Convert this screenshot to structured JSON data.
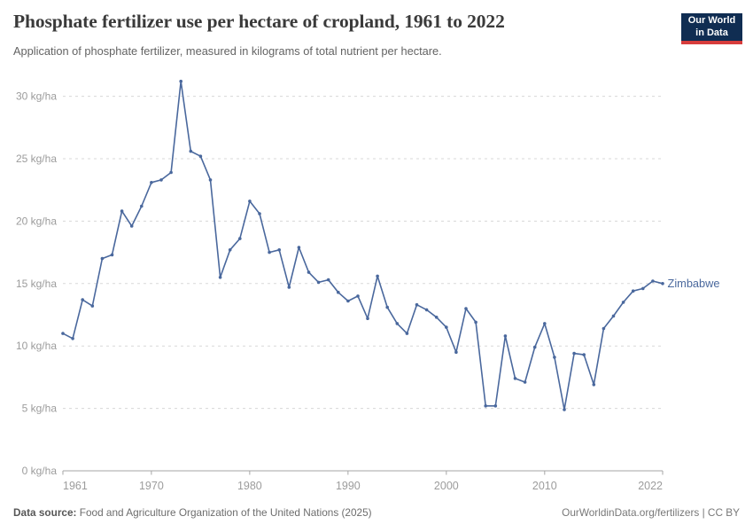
{
  "header": {
    "title": "Phosphate fertilizer use per hectare of cropland, 1961 to 2022",
    "subtitle": "Application of phosphate fertilizer, measured in kilograms of total nutrient per hectare."
  },
  "logo": {
    "line1": "Our World",
    "line2": "in Data",
    "bg_color": "#102d52",
    "accent_color": "#d73c3c"
  },
  "chart_data": {
    "type": "line",
    "title": "Phosphate fertilizer use per hectare of cropland, 1961 to 2022",
    "unit": "kg/ha",
    "x": [
      1961,
      1962,
      1963,
      1964,
      1965,
      1966,
      1967,
      1968,
      1969,
      1970,
      1971,
      1972,
      1973,
      1974,
      1975,
      1976,
      1977,
      1978,
      1979,
      1980,
      1981,
      1982,
      1983,
      1984,
      1985,
      1986,
      1987,
      1988,
      1989,
      1990,
      1991,
      1992,
      1993,
      1994,
      1995,
      1996,
      1997,
      1998,
      1999,
      2000,
      2001,
      2002,
      2003,
      2004,
      2005,
      2006,
      2007,
      2008,
      2009,
      2010,
      2011,
      2012,
      2013,
      2014,
      2015,
      2016,
      2017,
      2018,
      2019,
      2020,
      2021,
      2022
    ],
    "series": [
      {
        "name": "Zimbabwe",
        "color": "#4a689d",
        "values": [
          11,
          10.6,
          13.7,
          13.2,
          17,
          17.3,
          20.8,
          19.6,
          21.2,
          23.1,
          23.3,
          23.9,
          31.2,
          25.6,
          25.2,
          23.3,
          15.5,
          17.7,
          18.6,
          21.6,
          20.6,
          17.5,
          17.7,
          14.7,
          17.9,
          15.9,
          15.1,
          15.3,
          14.3,
          13.6,
          14,
          12.2,
          15.6,
          13.1,
          11.8,
          11,
          13.3,
          12.9,
          12.3,
          11.5,
          9.5,
          13,
          11.9,
          5.2,
          5.2,
          10.8,
          7.4,
          7.1,
          9.9,
          11.8,
          9.1,
          4.9,
          9.4,
          9.3,
          6.9,
          11.4,
          12.4,
          13.5,
          14.4,
          14.6,
          15.2,
          15
        ]
      }
    ],
    "ylim": [
      0,
      32
    ],
    "yticks": [
      0,
      5,
      10,
      15,
      20,
      25,
      30
    ],
    "ytick_suffix": " kg/ha",
    "xticks": [
      1961,
      1970,
      1980,
      1990,
      2000,
      2010,
      2022
    ],
    "grid": true,
    "legend_position": "end-of-line-label"
  },
  "footer": {
    "source_label": "Data source:",
    "source_text": " Food and Agriculture Organization of the United Nations (2025)",
    "credit": "OurWorldinData.org/fertilizers | CC BY"
  }
}
